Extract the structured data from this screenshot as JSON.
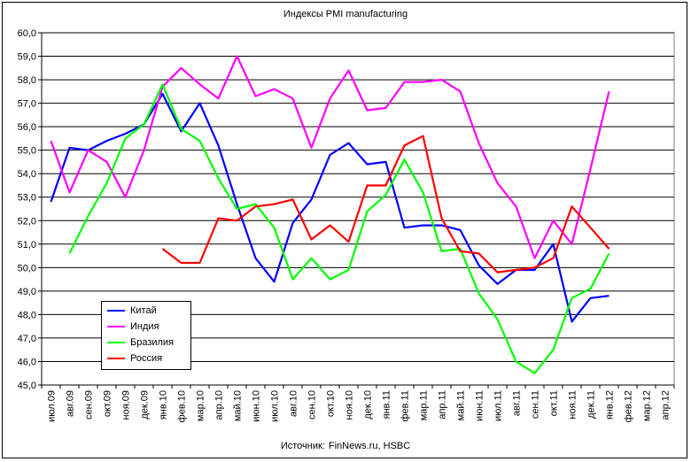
{
  "chart_data": {
    "type": "line",
    "title": "Индексы PMI manufacturing",
    "source_label": "Источник:",
    "source_value": "FinNews.ru, HSBC",
    "ylim": [
      45.0,
      60.0
    ],
    "ytick_step": 1.0,
    "yticks": [
      "45,0",
      "46,0",
      "47,0",
      "48,0",
      "49,0",
      "50,0",
      "51,0",
      "52,0",
      "53,0",
      "54,0",
      "55,0",
      "56,0",
      "57,0",
      "58,0",
      "59,0",
      "60,0"
    ],
    "categories": [
      "июл.09",
      "авг.09",
      "сен.09",
      "окт.09",
      "ноя.09",
      "дек.09",
      "янв.10",
      "фев.10",
      "мар.10",
      "апр.10",
      "май.10",
      "июн.10",
      "июл.10",
      "авг.10",
      "сен.10",
      "окт.10",
      "ноя.10",
      "дек.10",
      "янв.11",
      "фев.11",
      "мар.11",
      "апр.11",
      "май.11",
      "июн.11",
      "июл.11",
      "авг.11",
      "сен.11",
      "окт.11",
      "ноя.11",
      "дек.11",
      "янв.12",
      "фев.12",
      "мар.12",
      "апр.12"
    ],
    "series": [
      {
        "name": "Китай",
        "color": "#0000ff",
        "values": [
          52.8,
          55.1,
          55.0,
          55.4,
          55.7,
          56.1,
          57.4,
          55.8,
          57.0,
          55.2,
          52.7,
          50.4,
          49.4,
          51.9,
          52.9,
          54.8,
          55.3,
          54.4,
          54.5,
          51.7,
          51.8,
          51.8,
          51.6,
          50.1,
          49.3,
          49.9,
          49.9,
          51.0,
          47.7,
          48.7,
          48.8,
          null,
          null,
          null
        ]
      },
      {
        "name": "Индия",
        "color": "#ff00ff",
        "values": [
          55.4,
          53.2,
          55.0,
          54.5,
          53.0,
          55.0,
          57.7,
          58.5,
          57.8,
          57.2,
          59.0,
          57.3,
          57.6,
          57.2,
          55.1,
          57.2,
          58.4,
          56.7,
          56.8,
          57.9,
          57.9,
          58.0,
          57.5,
          55.3,
          53.6,
          52.6,
          50.4,
          52.0,
          51.0,
          54.2,
          57.5,
          null,
          null,
          null
        ]
      },
      {
        "name": "Бразилия",
        "color": "#00ff00",
        "values": [
          null,
          50.6,
          52.2,
          53.6,
          55.5,
          56.1,
          57.8,
          55.9,
          55.4,
          53.8,
          52.5,
          52.7,
          51.7,
          49.5,
          50.4,
          49.5,
          49.9,
          52.4,
          53.1,
          54.6,
          53.2,
          50.7,
          50.8,
          48.9,
          47.8,
          46.0,
          45.5,
          46.5,
          48.7,
          49.1,
          50.6,
          null,
          null,
          null
        ]
      },
      {
        "name": "Россия",
        "color": "#ff0000",
        "values": [
          null,
          null,
          null,
          null,
          null,
          null,
          50.8,
          50.2,
          50.2,
          52.1,
          52.0,
          52.6,
          52.7,
          52.9,
          51.2,
          51.8,
          51.1,
          53.5,
          53.5,
          55.2,
          55.6,
          52.1,
          50.7,
          50.6,
          49.8,
          49.9,
          50.0,
          50.4,
          52.6,
          51.7,
          50.8,
          null,
          null,
          null
        ]
      }
    ]
  }
}
